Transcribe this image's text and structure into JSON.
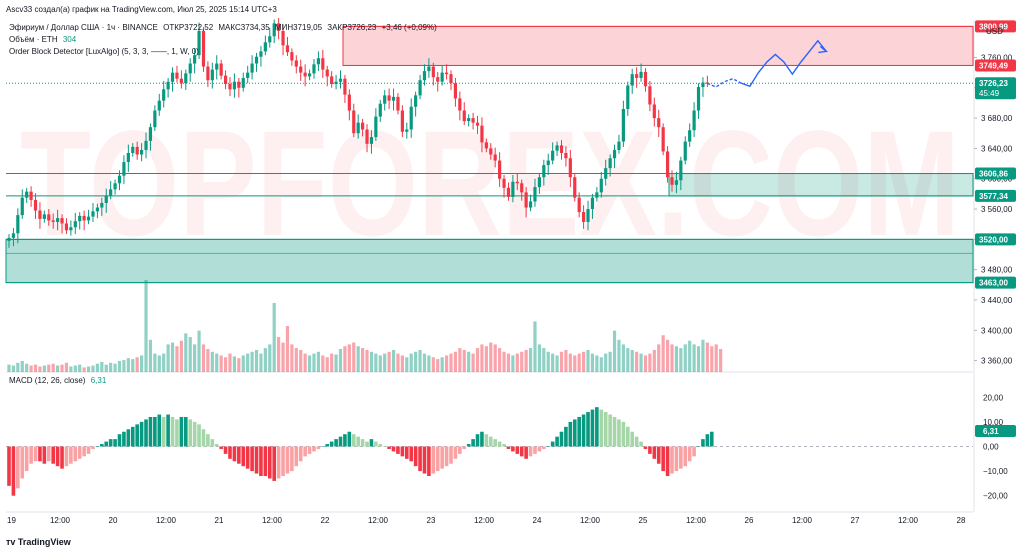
{
  "header": {
    "author_line": "Ascv33 создал(а) график на TradingView.com, Июл 25, 2025 15:14 UTC+3",
    "symbol": "Эфириум / Доллар США · 1ч · BINANCE",
    "open_label": "ОТКР",
    "open_value": "3722,52",
    "high_label": "МАКС",
    "high_value": "3734,35",
    "low_label": "МИН",
    "low_value": "3719,05",
    "close_label": "ЗАКР",
    "close_value": "3726,23",
    "change": "+3,46 (+0,09%)",
    "volume_label": "Объём · ETH",
    "volume_value": "304",
    "indicator": "Order Block Detector [LuxAlgo] (5, 3, 3, ——, 1, W, 0)",
    "macd_label": "MACD (12, 26, close)",
    "macd_value": "6,31",
    "currency": "USD",
    "branding": "TradingView",
    "watermark": "TOPFOREX.COM"
  },
  "chart_data": {
    "type": "candlestick",
    "title": "Эфириум / Доллар США · 1ч · BINANCE",
    "y_unit": "USD",
    "price_ticks": [
      "3 760,00",
      "3 720,00",
      "3 680,00",
      "3 640,00",
      "3 600,00",
      "3 560,00",
      "3 520,00",
      "3 480,00",
      "3 440,00",
      "3 400,00",
      "3 360,00"
    ],
    "macd_ticks": [
      "20,00",
      "10,00",
      "0,00",
      "−10,00",
      "−20,00"
    ],
    "x_ticks": [
      "19",
      "12:00",
      "20",
      "12:00",
      "21",
      "12:00",
      "22",
      "12:00",
      "23",
      "12:00",
      "24",
      "12:00",
      "25",
      "12:00",
      "26",
      "12:00",
      "27",
      "12:00",
      "28"
    ],
    "ylim": [
      3345,
      3820
    ],
    "current_price": "3726,23",
    "countdown": "45:49",
    "levels": [
      {
        "label": "3800,99",
        "value": 3800.99,
        "color": "#f23645"
      },
      {
        "label": "3749,49",
        "value": 3749.49,
        "color": "#f23645"
      },
      {
        "label": "3606,86",
        "value": 3606.86,
        "color": "#089981"
      },
      {
        "label": "3577,34",
        "value": 3577.34,
        "color": "#089981"
      },
      {
        "label": "3520,00",
        "value": 3520.0,
        "color": "#089981"
      },
      {
        "label": "3463,00",
        "value": 3463.0,
        "color": "#089981"
      }
    ],
    "zones": [
      {
        "type": "bearish",
        "top": 3800.99,
        "bottom": 3749.49,
        "color": "#f23645"
      },
      {
        "type": "bullish",
        "top": 3606.86,
        "bottom": 3577.34,
        "color": "#089981"
      },
      {
        "type": "bullish",
        "top": 3520.0,
        "bottom": 3463.0,
        "color": "#089981"
      }
    ],
    "closes": [
      3522,
      3528,
      3552,
      3575,
      3583,
      3572,
      3558,
      3547,
      3553,
      3545,
      3543,
      3548,
      3541,
      3532,
      3536,
      3544,
      3551,
      3545,
      3550,
      3557,
      3562,
      3568,
      3578,
      3586,
      3594,
      3604,
      3622,
      3634,
      3642,
      3632,
      3638,
      3650,
      3668,
      3690,
      3703,
      3718,
      3728,
      3740,
      3732,
      3726,
      3739,
      3752,
      3763,
      3795,
      3748,
      3730,
      3744,
      3752,
      3736,
      3725,
      3718,
      3728,
      3720,
      3733,
      3740,
      3752,
      3761,
      3768,
      3780,
      3788,
      3805,
      3795,
      3776,
      3767,
      3756,
      3748,
      3740,
      3735,
      3739,
      3751,
      3759,
      3744,
      3735,
      3725,
      3728,
      3732,
      3711,
      3690,
      3660,
      3674,
      3665,
      3646,
      3655,
      3682,
      3699,
      3710,
      3703,
      3708,
      3690,
      3662,
      3665,
      3695,
      3710,
      3730,
      3742,
      3748,
      3734,
      3728,
      3740,
      3738,
      3726,
      3706,
      3690,
      3676,
      3680,
      3674,
      3670,
      3648,
      3640,
      3632,
      3624,
      3600,
      3588,
      3576,
      3596,
      3594,
      3582,
      3562,
      3570,
      3589,
      3602,
      3618,
      3624,
      3637,
      3644,
      3634,
      3627,
      3602,
      3575,
      3556,
      3543,
      3560,
      3575,
      3582,
      3600,
      3614,
      3627,
      3638,
      3649,
      3692,
      3723,
      3738,
      3733,
      3741,
      3722,
      3698,
      3680,
      3668,
      3636,
      3602,
      3592,
      3598,
      3624,
      3649,
      3664,
      3690,
      3721,
      3727,
      3726
    ],
    "projection": [
      3726,
      3721,
      3728,
      3732,
      3726,
      3722,
      3740,
      3754,
      3764,
      3754,
      3738,
      3754,
      3768,
      3782,
      3768
    ],
    "macd": [
      -16,
      -20,
      -17,
      -13,
      -10,
      -7,
      -6,
      -6,
      -7,
      -6,
      -7,
      -8,
      -9,
      -8,
      -7,
      -6,
      -5,
      -4,
      -3,
      -1,
      0,
      1,
      2,
      3,
      3,
      5,
      6,
      7,
      8,
      9,
      10,
      11,
      12,
      12,
      13,
      12,
      13,
      12,
      11,
      12,
      12,
      11,
      10,
      9,
      7,
      5,
      3,
      1,
      -1,
      -3,
      -5,
      -6,
      -7,
      -8,
      -9,
      -10,
      -11,
      -12,
      -12,
      -13,
      -14,
      -13,
      -12,
      -11,
      -10,
      -8,
      -6,
      -4,
      -3,
      -2,
      -1,
      0,
      1,
      2,
      3,
      4,
      5,
      6,
      5,
      4,
      3,
      2,
      3,
      2,
      1,
      0,
      -1,
      -2,
      -3,
      -4,
      -5,
      -6,
      -8,
      -10,
      -11,
      -12,
      -11,
      -10,
      -9,
      -8,
      -7,
      -5,
      -3,
      -1,
      1,
      3,
      5,
      6,
      5,
      4,
      3,
      2,
      1,
      -1,
      -2,
      -3,
      -4,
      -5,
      -4,
      -3,
      -2,
      -1,
      0,
      2,
      4,
      6,
      8,
      10,
      11,
      12,
      13,
      14,
      15,
      16,
      15,
      14,
      13,
      12,
      11,
      10,
      8,
      6,
      4,
      2,
      -1,
      -3,
      -5,
      -7,
      -10,
      -12,
      -11,
      -10,
      -9,
      -8,
      -6,
      -4,
      0,
      3,
      5,
      6
    ],
    "volume": [
      0.08,
      0.07,
      0.1,
      0.12,
      0.09,
      0.07,
      0.08,
      0.06,
      0.07,
      0.08,
      0.09,
      0.07,
      0.08,
      0.1,
      0.06,
      0.07,
      0.08,
      0.05,
      0.06,
      0.07,
      0.09,
      0.11,
      0.08,
      0.1,
      0.09,
      0.12,
      0.13,
      0.15,
      0.14,
      0.16,
      0.18,
      1.0,
      0.35,
      0.2,
      0.18,
      0.2,
      0.3,
      0.32,
      0.28,
      0.34,
      0.42,
      0.38,
      0.3,
      0.45,
      0.3,
      0.25,
      0.22,
      0.2,
      0.18,
      0.16,
      0.2,
      0.17,
      0.15,
      0.18,
      0.2,
      0.22,
      0.24,
      0.2,
      0.26,
      0.3,
      0.75,
      0.38,
      0.32,
      0.5,
      0.3,
      0.26,
      0.24,
      0.2,
      0.18,
      0.2,
      0.22,
      0.18,
      0.16,
      0.2,
      0.19,
      0.25,
      0.28,
      0.3,
      0.32,
      0.28,
      0.26,
      0.24,
      0.22,
      0.2,
      0.18,
      0.2,
      0.22,
      0.24,
      0.2,
      0.18,
      0.16,
      0.2,
      0.22,
      0.24,
      0.2,
      0.18,
      0.16,
      0.14,
      0.16,
      0.18,
      0.2,
      0.22,
      0.26,
      0.24,
      0.22,
      0.2,
      0.26,
      0.3,
      0.28,
      0.32,
      0.3,
      0.26,
      0.22,
      0.2,
      0.18,
      0.2,
      0.22,
      0.24,
      0.26,
      0.55,
      0.3,
      0.26,
      0.22,
      0.2,
      0.18,
      0.22,
      0.24,
      0.2,
      0.18,
      0.2,
      0.22,
      0.24,
      0.2,
      0.18,
      0.16,
      0.2,
      0.22,
      0.45,
      0.35,
      0.3,
      0.26,
      0.24,
      0.22,
      0.2,
      0.18,
      0.2,
      0.24,
      0.3,
      0.4,
      0.35,
      0.3,
      0.28,
      0.26,
      0.3,
      0.34,
      0.3,
      0.28,
      0.35,
      0.32,
      0.28,
      0.3,
      0.25
    ]
  },
  "colors": {
    "up": "#089981",
    "down": "#f23645",
    "up_light": "#a5d6a7",
    "down_light": "#faa1a4",
    "projection": "#2962ff"
  }
}
